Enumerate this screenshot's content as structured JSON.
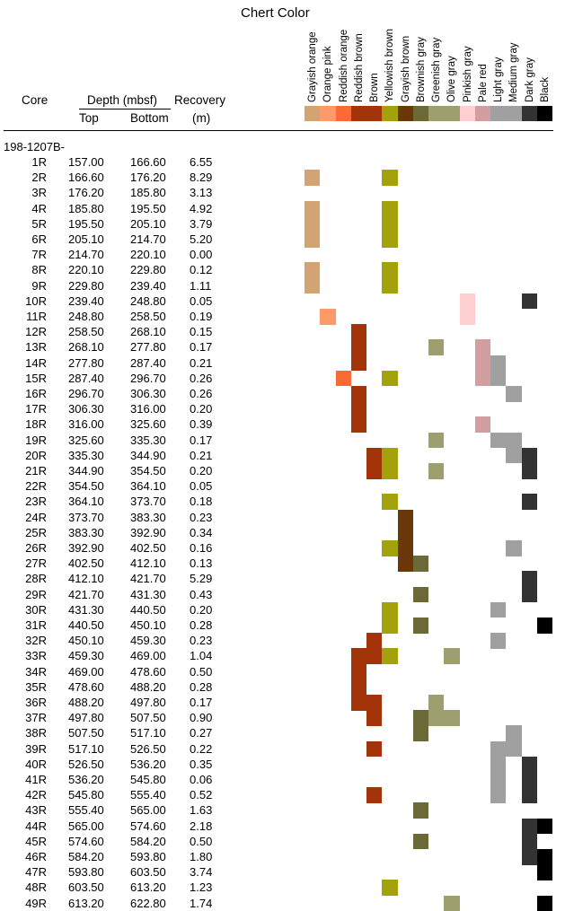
{
  "title": "Chert Color",
  "headers": {
    "core": "Core",
    "depth": "Depth (mbsf)",
    "top": "Top",
    "bottom": "Bottom",
    "recovery": "Recovery",
    "recovery_unit": "(m)"
  },
  "hole": "198-1207B-",
  "colors": [
    {
      "name": "Grayish orange",
      "hex": "#d4a373"
    },
    {
      "name": "Orange pink",
      "hex": "#fc9a6a"
    },
    {
      "name": "Reddish orange",
      "hex": "#fa6a35"
    },
    {
      "name": "Reddish brown",
      "hex": "#a33409"
    },
    {
      "name": "Brown",
      "hex": "#a33409"
    },
    {
      "name": "Yellowish brown",
      "hex": "#a3a20a"
    },
    {
      "name": "Grayish brown",
      "hex": "#6a3708"
    },
    {
      "name": "Brownish gray",
      "hex": "#6b6a37"
    },
    {
      "name": "Greenish gray",
      "hex": "#9e9f6e"
    },
    {
      "name": "Olive gray",
      "hex": "#9e9f6e"
    },
    {
      "name": "Pinkish gray",
      "hex": "#ffcfd0"
    },
    {
      "name": "Pale red",
      "hex": "#d39e9f"
    },
    {
      "name": "Light gray",
      "hex": "#a0a0a0"
    },
    {
      "name": "Medium gray",
      "hex": "#a0a0a0"
    },
    {
      "name": "Dark gray",
      "hex": "#333333"
    },
    {
      "name": "Black",
      "hex": "#000000"
    }
  ],
  "rows": [
    {
      "core": "1R",
      "top": "157.00",
      "bottom": "166.60",
      "recovery": "6.55",
      "colors": []
    },
    {
      "core": "2R",
      "top": "166.60",
      "bottom": "176.20",
      "recovery": "8.29",
      "colors": [
        "Grayish orange",
        "Yellowish brown"
      ]
    },
    {
      "core": "3R",
      "top": "176.20",
      "bottom": "185.80",
      "recovery": "3.13",
      "colors": []
    },
    {
      "core": "4R",
      "top": "185.80",
      "bottom": "195.50",
      "recovery": "4.92",
      "colors": [
        "Grayish orange",
        "Yellowish brown"
      ]
    },
    {
      "core": "5R",
      "top": "195.50",
      "bottom": "205.10",
      "recovery": "3.79",
      "colors": [
        "Grayish orange",
        "Yellowish brown"
      ]
    },
    {
      "core": "6R",
      "top": "205.10",
      "bottom": "214.70",
      "recovery": "5.20",
      "colors": [
        "Grayish orange",
        "Yellowish brown"
      ]
    },
    {
      "core": "7R",
      "top": "214.70",
      "bottom": "220.10",
      "recovery": "0.00",
      "colors": []
    },
    {
      "core": "8R",
      "top": "220.10",
      "bottom": "229.80",
      "recovery": "0.12",
      "colors": [
        "Grayish orange",
        "Yellowish brown"
      ]
    },
    {
      "core": "9R",
      "top": "229.80",
      "bottom": "239.40",
      "recovery": "1.11",
      "colors": [
        "Grayish orange",
        "Yellowish brown"
      ]
    },
    {
      "core": "10R",
      "top": "239.40",
      "bottom": "248.80",
      "recovery": "0.05",
      "colors": [
        "Pinkish gray",
        "Dark gray"
      ]
    },
    {
      "core": "11R",
      "top": "248.80",
      "bottom": "258.50",
      "recovery": "0.19",
      "colors": [
        "Orange pink",
        "Pinkish gray"
      ]
    },
    {
      "core": "12R",
      "top": "258.50",
      "bottom": "268.10",
      "recovery": "0.15",
      "colors": [
        "Reddish brown"
      ]
    },
    {
      "core": "13R",
      "top": "268.10",
      "bottom": "277.80",
      "recovery": "0.17",
      "colors": [
        "Reddish brown",
        "Greenish gray",
        "Pale red"
      ]
    },
    {
      "core": "14R",
      "top": "277.80",
      "bottom": "287.40",
      "recovery": "0.21",
      "colors": [
        "Reddish brown",
        "Pale red",
        "Light gray"
      ]
    },
    {
      "core": "15R",
      "top": "287.40",
      "bottom": "296.70",
      "recovery": "0.26",
      "colors": [
        "Reddish orange",
        "Yellowish brown",
        "Pale red",
        "Light gray"
      ]
    },
    {
      "core": "16R",
      "top": "296.70",
      "bottom": "306.30",
      "recovery": "0.26",
      "colors": [
        "Reddish brown",
        "Medium gray"
      ]
    },
    {
      "core": "17R",
      "top": "306.30",
      "bottom": "316.00",
      "recovery": "0.20",
      "colors": [
        "Reddish brown"
      ]
    },
    {
      "core": "18R",
      "top": "316.00",
      "bottom": "325.60",
      "recovery": "0.39",
      "colors": [
        "Reddish brown",
        "Pale red"
      ]
    },
    {
      "core": "19R",
      "top": "325.60",
      "bottom": "335.30",
      "recovery": "0.17",
      "colors": [
        "Greenish gray",
        "Light gray",
        "Medium gray"
      ]
    },
    {
      "core": "20R",
      "top": "335.30",
      "bottom": "344.90",
      "recovery": "0.21",
      "colors": [
        "Brown",
        "Yellowish brown",
        "Medium gray",
        "Dark gray"
      ]
    },
    {
      "core": "21R",
      "top": "344.90",
      "bottom": "354.50",
      "recovery": "0.20",
      "colors": [
        "Brown",
        "Yellowish brown",
        "Greenish gray",
        "Dark gray"
      ]
    },
    {
      "core": "22R",
      "top": "354.50",
      "bottom": "364.10",
      "recovery": "0.05",
      "colors": []
    },
    {
      "core": "23R",
      "top": "364.10",
      "bottom": "373.70",
      "recovery": "0.18",
      "colors": [
        "Yellowish brown",
        "Dark gray"
      ]
    },
    {
      "core": "24R",
      "top": "373.70",
      "bottom": "383.30",
      "recovery": "0.23",
      "colors": [
        "Grayish brown"
      ]
    },
    {
      "core": "25R",
      "top": "383.30",
      "bottom": "392.90",
      "recovery": "0.34",
      "colors": [
        "Grayish brown"
      ]
    },
    {
      "core": "26R",
      "top": "392.90",
      "bottom": "402.50",
      "recovery": "0.16",
      "colors": [
        "Yellowish brown",
        "Grayish brown",
        "Medium gray"
      ]
    },
    {
      "core": "27R",
      "top": "402.50",
      "bottom": "412.10",
      "recovery": "0.13",
      "colors": [
        "Grayish brown",
        "Brownish gray"
      ]
    },
    {
      "core": "28R",
      "top": "412.10",
      "bottom": "421.70",
      "recovery": "5.29",
      "colors": [
        "Dark gray"
      ]
    },
    {
      "core": "29R",
      "top": "421.70",
      "bottom": "431.30",
      "recovery": "0.43",
      "colors": [
        "Brownish gray",
        "Dark gray"
      ]
    },
    {
      "core": "30R",
      "top": "431.30",
      "bottom": "440.50",
      "recovery": "0.20",
      "colors": [
        "Yellowish brown",
        "Light gray"
      ]
    },
    {
      "core": "31R",
      "top": "440.50",
      "bottom": "450.10",
      "recovery": "0.28",
      "colors": [
        "Yellowish brown",
        "Brownish gray",
        "Black"
      ]
    },
    {
      "core": "32R",
      "top": "450.10",
      "bottom": "459.30",
      "recovery": "0.23",
      "colors": [
        "Brown",
        "Light gray"
      ]
    },
    {
      "core": "33R",
      "top": "459.30",
      "bottom": "469.00",
      "recovery": "1.04",
      "colors": [
        "Reddish brown",
        "Brown",
        "Yellowish brown",
        "Olive gray"
      ]
    },
    {
      "core": "34R",
      "top": "469.00",
      "bottom": "478.60",
      "recovery": "0.50",
      "colors": [
        "Reddish brown"
      ]
    },
    {
      "core": "35R",
      "top": "478.60",
      "bottom": "488.20",
      "recovery": "0.28",
      "colors": [
        "Reddish brown"
      ]
    },
    {
      "core": "36R",
      "top": "488.20",
      "bottom": "497.80",
      "recovery": "0.17",
      "colors": [
        "Reddish brown",
        "Brown",
        "Greenish gray"
      ]
    },
    {
      "core": "37R",
      "top": "497.80",
      "bottom": "507.50",
      "recovery": "0.90",
      "colors": [
        "Brown",
        "Brownish gray",
        "Greenish gray",
        "Olive gray"
      ]
    },
    {
      "core": "38R",
      "top": "507.50",
      "bottom": "517.10",
      "recovery": "0.27",
      "colors": [
        "Brownish gray",
        "Medium gray"
      ]
    },
    {
      "core": "39R",
      "top": "517.10",
      "bottom": "526.50",
      "recovery": "0.22",
      "colors": [
        "Brown",
        "Light gray",
        "Medium gray"
      ]
    },
    {
      "core": "40R",
      "top": "526.50",
      "bottom": "536.20",
      "recovery": "0.35",
      "colors": [
        "Light gray",
        "Dark gray"
      ]
    },
    {
      "core": "41R",
      "top": "536.20",
      "bottom": "545.80",
      "recovery": "0.06",
      "colors": [
        "Light gray",
        "Dark gray"
      ]
    },
    {
      "core": "42R",
      "top": "545.80",
      "bottom": "555.40",
      "recovery": "0.52",
      "colors": [
        "Brown",
        "Light gray",
        "Dark gray"
      ]
    },
    {
      "core": "43R",
      "top": "555.40",
      "bottom": "565.00",
      "recovery": "1.63",
      "colors": [
        "Brownish gray"
      ]
    },
    {
      "core": "44R",
      "top": "565.00",
      "bottom": "574.60",
      "recovery": "2.18",
      "colors": [
        "Dark gray",
        "Black"
      ]
    },
    {
      "core": "45R",
      "top": "574.60",
      "bottom": "584.20",
      "recovery": "0.50",
      "colors": [
        "Brownish gray",
        "Dark gray"
      ]
    },
    {
      "core": "46R",
      "top": "584.20",
      "bottom": "593.80",
      "recovery": "1.80",
      "colors": [
        "Dark gray",
        "Black"
      ]
    },
    {
      "core": "47R",
      "top": "593.80",
      "bottom": "603.50",
      "recovery": "3.74",
      "colors": [
        "Black"
      ]
    },
    {
      "core": "48R",
      "top": "603.50",
      "bottom": "613.20",
      "recovery": "1.23",
      "colors": [
        "Yellowish brown"
      ]
    },
    {
      "core": "49R",
      "top": "613.20",
      "bottom": "622.80",
      "recovery": "1.74",
      "colors": [
        "Olive gray",
        "Black"
      ]
    }
  ]
}
